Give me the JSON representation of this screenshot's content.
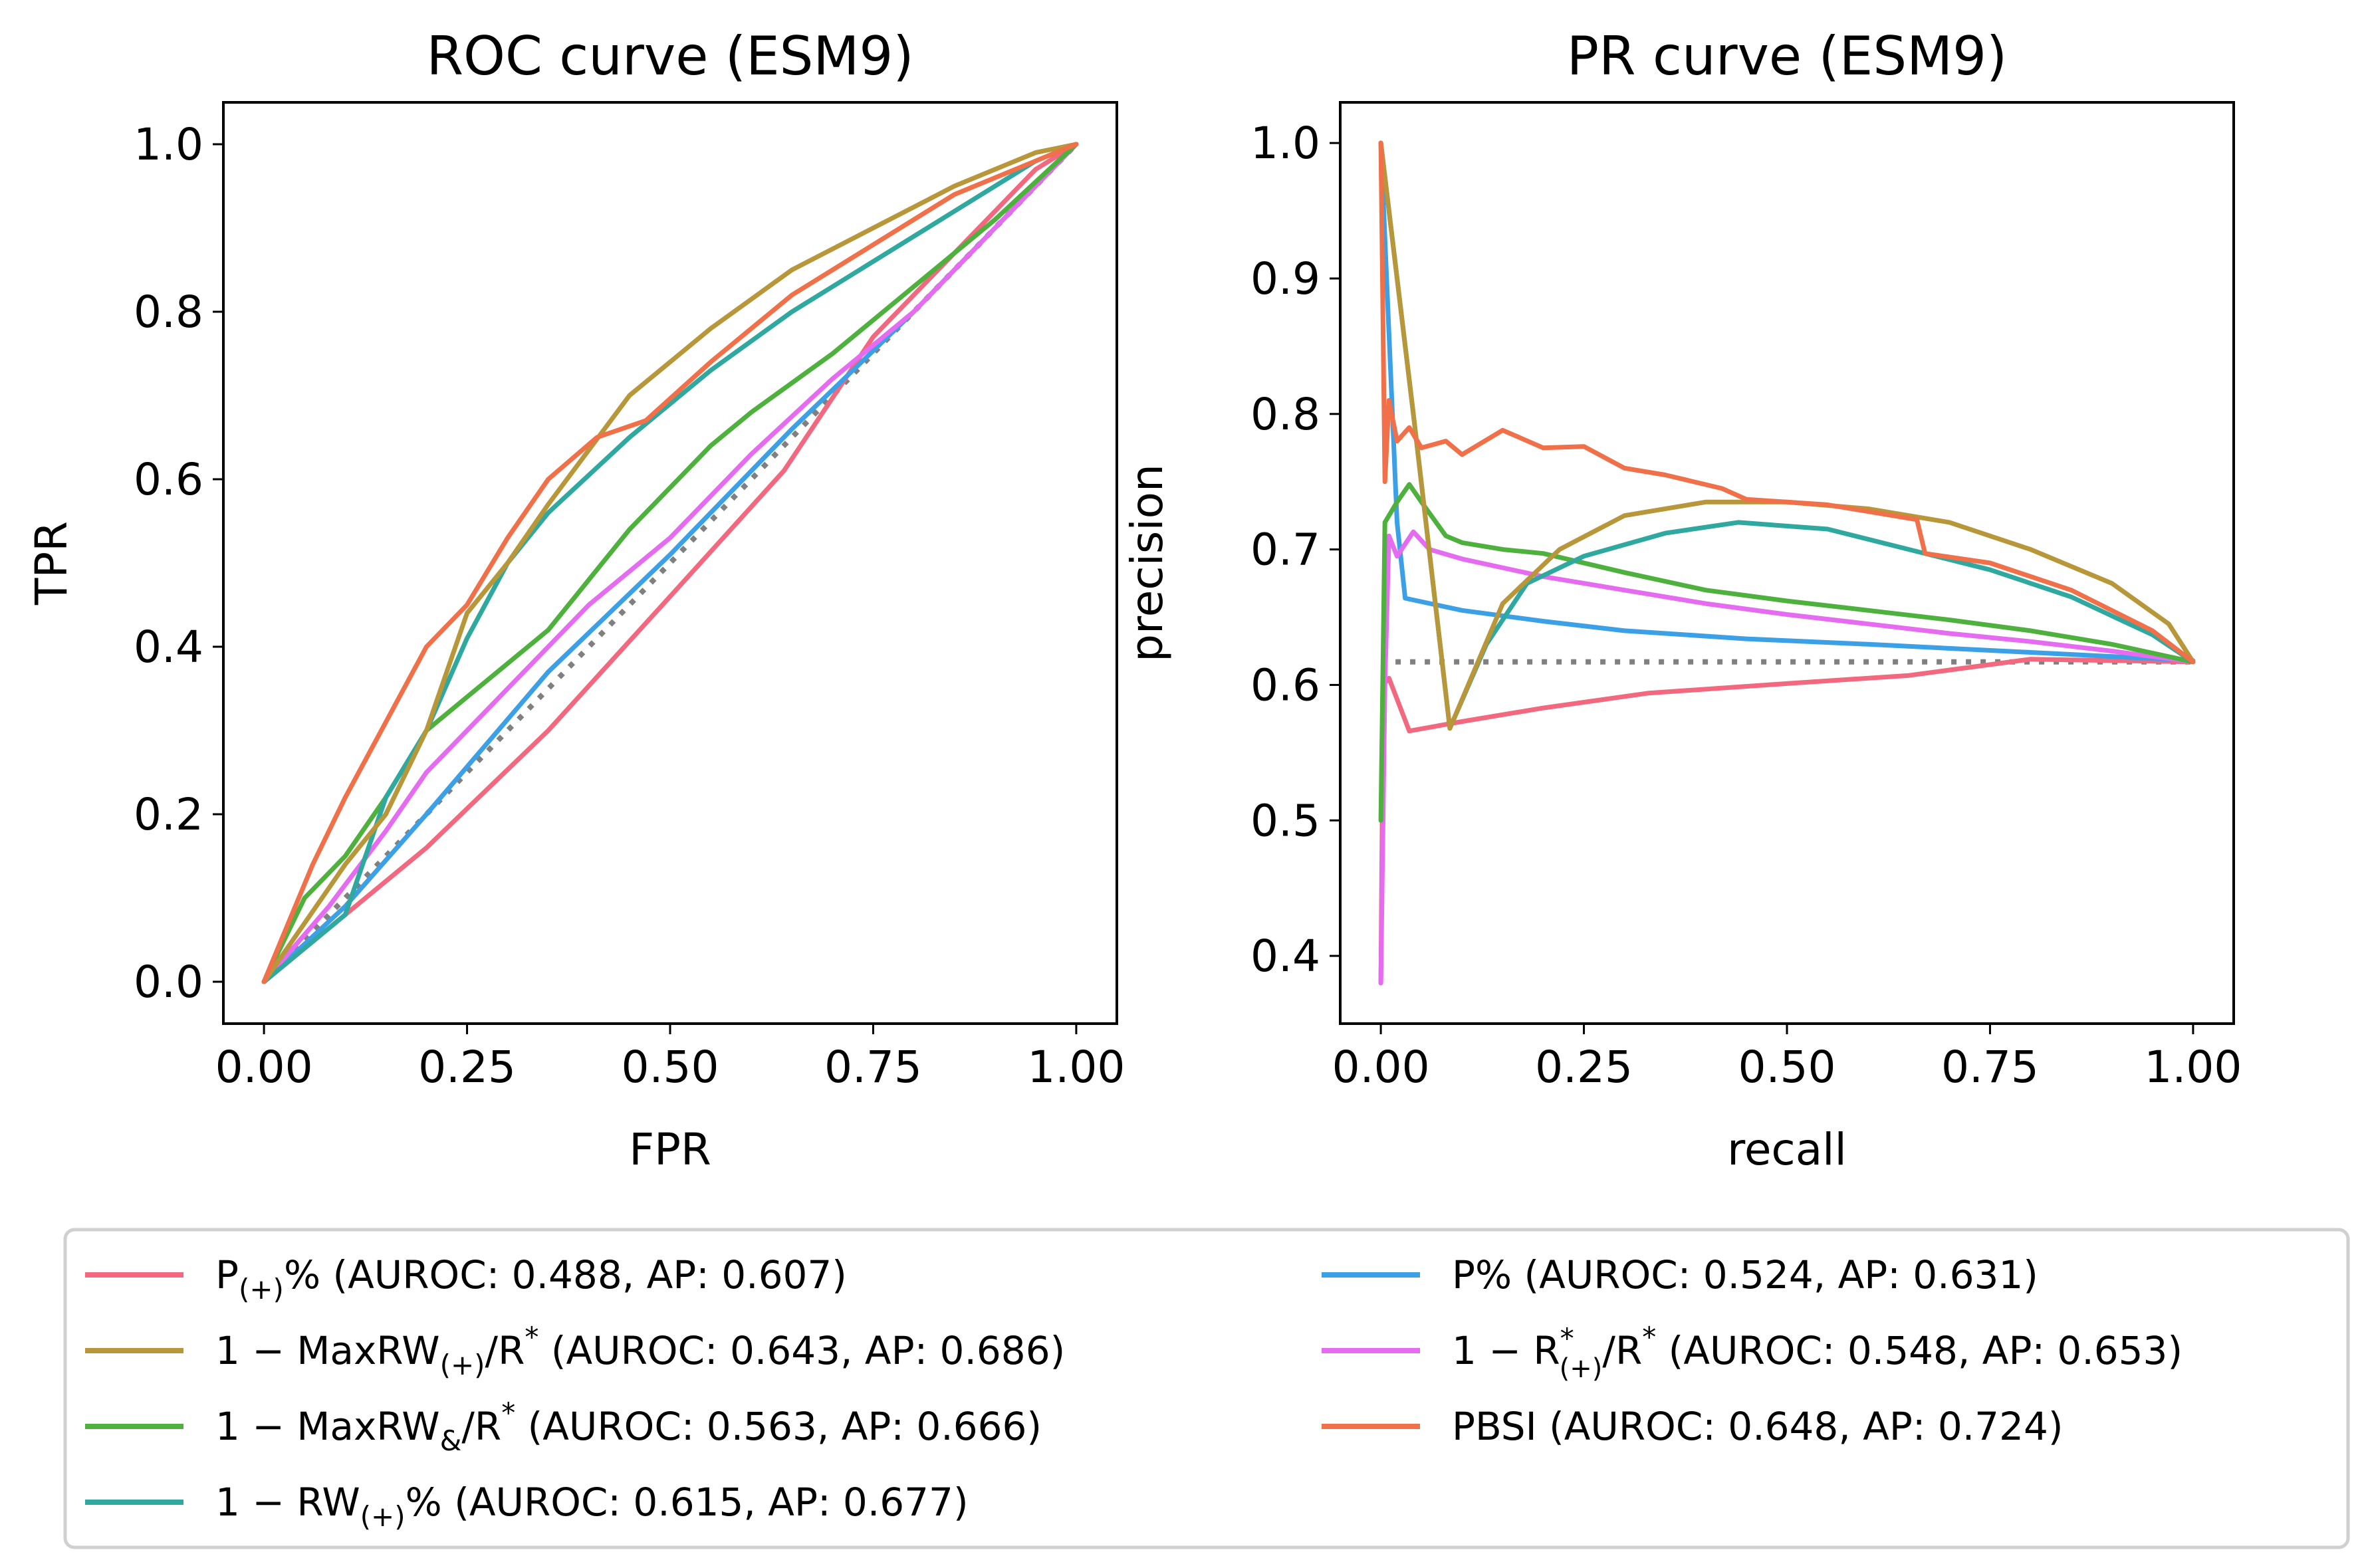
{
  "colors": {
    "p_plus": "#f2687f",
    "maxrw_plus": "#b8973a",
    "maxrw_amp": "#4fb13d",
    "rw_plus": "#2fa9a0",
    "p_pct": "#3ba0e6",
    "r_plus": "#e56bf0",
    "pbsi": "#f07049",
    "baseline": "#808080"
  },
  "chart_data": [
    {
      "id": "roc",
      "type": "line",
      "title": "ROC curve (ESM9)",
      "xlabel": "FPR",
      "ylabel": "TPR",
      "xlim": [
        -0.05,
        1.05
      ],
      "ylim": [
        -0.05,
        1.05
      ],
      "xticks": [
        "0.00",
        "0.25",
        "0.50",
        "0.75",
        "1.00"
      ],
      "yticks": [
        "0.0",
        "0.2",
        "0.4",
        "0.6",
        "0.8",
        "1.0"
      ],
      "baseline": [
        [
          0,
          0
        ],
        [
          1,
          1
        ]
      ],
      "series": [
        {
          "key": "p_plus",
          "points": [
            [
              0,
              0
            ],
            [
              0.1,
              0.08
            ],
            [
              0.2,
              0.16
            ],
            [
              0.35,
              0.3
            ],
            [
              0.5,
              0.46
            ],
            [
              0.64,
              0.61
            ],
            [
              0.75,
              0.77
            ],
            [
              0.85,
              0.87
            ],
            [
              0.95,
              0.97
            ],
            [
              1,
              1
            ]
          ]
        },
        {
          "key": "p_pct",
          "points": [
            [
              0,
              0
            ],
            [
              0.1,
              0.09
            ],
            [
              0.2,
              0.2
            ],
            [
              0.35,
              0.37
            ],
            [
              0.5,
              0.51
            ],
            [
              0.65,
              0.66
            ],
            [
              0.8,
              0.8
            ],
            [
              0.9,
              0.9
            ],
            [
              1,
              1
            ]
          ]
        },
        {
          "key": "r_plus",
          "points": [
            [
              0,
              0
            ],
            [
              0.08,
              0.09
            ],
            [
              0.15,
              0.18
            ],
            [
              0.2,
              0.25
            ],
            [
              0.3,
              0.35
            ],
            [
              0.4,
              0.45
            ],
            [
              0.5,
              0.53
            ],
            [
              0.6,
              0.63
            ],
            [
              0.7,
              0.72
            ],
            [
              0.8,
              0.8
            ],
            [
              0.9,
              0.9
            ],
            [
              1,
              1
            ]
          ]
        },
        {
          "key": "maxrw_amp",
          "points": [
            [
              0,
              0
            ],
            [
              0.05,
              0.1
            ],
            [
              0.1,
              0.15
            ],
            [
              0.15,
              0.22
            ],
            [
              0.2,
              0.3
            ],
            [
              0.25,
              0.34
            ],
            [
              0.35,
              0.42
            ],
            [
              0.45,
              0.54
            ],
            [
              0.55,
              0.64
            ],
            [
              0.6,
              0.68
            ],
            [
              0.7,
              0.75
            ],
            [
              0.8,
              0.83
            ],
            [
              0.9,
              0.91
            ],
            [
              1,
              1
            ]
          ]
        },
        {
          "key": "rw_plus",
          "points": [
            [
              0,
              0
            ],
            [
              0.1,
              0.08
            ],
            [
              0.15,
              0.22
            ],
            [
              0.2,
              0.3
            ],
            [
              0.25,
              0.41
            ],
            [
              0.3,
              0.5
            ],
            [
              0.35,
              0.56
            ],
            [
              0.45,
              0.65
            ],
            [
              0.55,
              0.73
            ],
            [
              0.65,
              0.8
            ],
            [
              0.75,
              0.86
            ],
            [
              0.85,
              0.92
            ],
            [
              0.95,
              0.98
            ],
            [
              1,
              1
            ]
          ]
        },
        {
          "key": "maxrw_plus",
          "points": [
            [
              0,
              0
            ],
            [
              0.1,
              0.14
            ],
            [
              0.15,
              0.2
            ],
            [
              0.2,
              0.3
            ],
            [
              0.25,
              0.44
            ],
            [
              0.3,
              0.5
            ],
            [
              0.35,
              0.57
            ],
            [
              0.45,
              0.7
            ],
            [
              0.55,
              0.78
            ],
            [
              0.65,
              0.85
            ],
            [
              0.75,
              0.9
            ],
            [
              0.85,
              0.95
            ],
            [
              0.95,
              0.99
            ],
            [
              1,
              1
            ]
          ]
        },
        {
          "key": "pbsi",
          "points": [
            [
              0,
              0
            ],
            [
              0.03,
              0.07
            ],
            [
              0.06,
              0.14
            ],
            [
              0.1,
              0.22
            ],
            [
              0.15,
              0.31
            ],
            [
              0.2,
              0.4
            ],
            [
              0.25,
              0.45
            ],
            [
              0.3,
              0.53
            ],
            [
              0.35,
              0.6
            ],
            [
              0.41,
              0.65
            ],
            [
              0.47,
              0.67
            ],
            [
              0.55,
              0.74
            ],
            [
              0.65,
              0.82
            ],
            [
              0.75,
              0.88
            ],
            [
              0.85,
              0.94
            ],
            [
              0.95,
              0.98
            ],
            [
              1,
              1
            ]
          ]
        }
      ]
    },
    {
      "id": "pr",
      "type": "line",
      "title": "PR curve (ESM9)",
      "xlabel": "recall",
      "ylabel": "precision",
      "xlim": [
        -0.05,
        1.05
      ],
      "ylim": [
        0.35,
        1.03
      ],
      "xticks": [
        "0.00",
        "0.25",
        "0.50",
        "0.75",
        "1.00"
      ],
      "yticks": [
        "0.4",
        "0.5",
        "0.6",
        "0.7",
        "0.8",
        "0.9",
        "1.0"
      ],
      "baseline": [
        [
          0,
          0.617
        ],
        [
          1,
          0.617
        ]
      ],
      "series": [
        {
          "key": "p_plus",
          "points": [
            [
              0,
              0.38
            ],
            [
              0.003,
              0.6
            ],
            [
              0.01,
              0.605
            ],
            [
              0.035,
              0.566
            ],
            [
              0.1,
              0.573
            ],
            [
              0.2,
              0.583
            ],
            [
              0.33,
              0.594
            ],
            [
              0.5,
              0.601
            ],
            [
              0.65,
              0.607
            ],
            [
              0.8,
              0.619
            ],
            [
              1,
              0.617
            ]
          ]
        },
        {
          "key": "p_pct",
          "points": [
            [
              0,
              1.0
            ],
            [
              0.02,
              0.72
            ],
            [
              0.03,
              0.664
            ],
            [
              0.1,
              0.655
            ],
            [
              0.2,
              0.647
            ],
            [
              0.3,
              0.64
            ],
            [
              0.45,
              0.634
            ],
            [
              0.6,
              0.63
            ],
            [
              0.8,
              0.624
            ],
            [
              1,
              0.618
            ]
          ]
        },
        {
          "key": "r_plus",
          "points": [
            [
              0,
              0.38
            ],
            [
              0.005,
              0.6
            ],
            [
              0.01,
              0.71
            ],
            [
              0.02,
              0.695
            ],
            [
              0.04,
              0.713
            ],
            [
              0.06,
              0.7
            ],
            [
              0.1,
              0.693
            ],
            [
              0.2,
              0.68
            ],
            [
              0.3,
              0.67
            ],
            [
              0.4,
              0.66
            ],
            [
              0.5,
              0.652
            ],
            [
              0.6,
              0.645
            ],
            [
              0.7,
              0.638
            ],
            [
              0.8,
              0.632
            ],
            [
              0.9,
              0.625
            ],
            [
              1,
              0.617
            ]
          ]
        },
        {
          "key": "maxrw_amp",
          "points": [
            [
              0,
              0.5
            ],
            [
              0.005,
              0.72
            ],
            [
              0.02,
              0.735
            ],
            [
              0.035,
              0.748
            ],
            [
              0.05,
              0.735
            ],
            [
              0.08,
              0.71
            ],
            [
              0.1,
              0.705
            ],
            [
              0.15,
              0.7
            ],
            [
              0.2,
              0.697
            ],
            [
              0.3,
              0.683
            ],
            [
              0.4,
              0.67
            ],
            [
              0.5,
              0.662
            ],
            [
              0.6,
              0.655
            ],
            [
              0.7,
              0.648
            ],
            [
              0.8,
              0.64
            ],
            [
              0.9,
              0.63
            ],
            [
              1,
              0.617
            ]
          ]
        },
        {
          "key": "rw_plus",
          "points": [
            [
              0,
              1.0
            ],
            [
              0.04,
              0.8
            ],
            [
              0.085,
              0.568
            ],
            [
              0.13,
              0.63
            ],
            [
              0.18,
              0.675
            ],
            [
              0.25,
              0.695
            ],
            [
              0.35,
              0.712
            ],
            [
              0.44,
              0.72
            ],
            [
              0.55,
              0.715
            ],
            [
              0.65,
              0.7
            ],
            [
              0.75,
              0.685
            ],
            [
              0.85,
              0.665
            ],
            [
              0.95,
              0.637
            ],
            [
              1,
              0.617
            ]
          ]
        },
        {
          "key": "maxrw_plus",
          "points": [
            [
              0,
              1.0
            ],
            [
              0.04,
              0.8
            ],
            [
              0.085,
              0.568
            ],
            [
              0.15,
              0.66
            ],
            [
              0.22,
              0.7
            ],
            [
              0.3,
              0.725
            ],
            [
              0.4,
              0.735
            ],
            [
              0.5,
              0.735
            ],
            [
              0.6,
              0.73
            ],
            [
              0.7,
              0.72
            ],
            [
              0.8,
              0.7
            ],
            [
              0.9,
              0.675
            ],
            [
              0.97,
              0.645
            ],
            [
              1,
              0.617
            ]
          ]
        },
        {
          "key": "pbsi",
          "points": [
            [
              0,
              1.0
            ],
            [
              0.005,
              0.75
            ],
            [
              0.01,
              0.81
            ],
            [
              0.02,
              0.78
            ],
            [
              0.035,
              0.79
            ],
            [
              0.05,
              0.775
            ],
            [
              0.08,
              0.78
            ],
            [
              0.1,
              0.77
            ],
            [
              0.15,
              0.788
            ],
            [
              0.2,
              0.775
            ],
            [
              0.25,
              0.776
            ],
            [
              0.3,
              0.76
            ],
            [
              0.35,
              0.755
            ],
            [
              0.42,
              0.745
            ],
            [
              0.45,
              0.737
            ],
            [
              0.55,
              0.733
            ],
            [
              0.66,
              0.722
            ],
            [
              0.67,
              0.697
            ],
            [
              0.75,
              0.69
            ],
            [
              0.85,
              0.67
            ],
            [
              0.95,
              0.64
            ],
            [
              1,
              0.617
            ]
          ]
        }
      ]
    }
  ],
  "legend": {
    "placement": "bottom",
    "columns": [
      [
        {
          "key": "p_plus",
          "base": "P",
          "sub": "(+)",
          "tail": "% (AUROC: 0.488, AP: 0.607)"
        },
        {
          "key": "maxrw_plus",
          "base": "1 − MaxRW",
          "sub": "(+)",
          "mid": "/R",
          "sup": "*",
          "tail": " (AUROC: 0.643, AP: 0.686)"
        },
        {
          "key": "maxrw_amp",
          "base": "1 − MaxRW",
          "sub": "&",
          "mid": "/R",
          "sup": "*",
          "tail": " (AUROC: 0.563, AP: 0.666)"
        },
        {
          "key": "rw_plus",
          "base": "1 − RW",
          "sub": "(+)",
          "tail": "% (AUROC: 0.615, AP: 0.677)"
        }
      ],
      [
        {
          "key": "p_pct",
          "base": "P% (AUROC: 0.524, AP: 0.631)"
        },
        {
          "key": "r_plus",
          "base": "1 − R",
          "sub": "(+)",
          "subsup": "*",
          "mid": "/R",
          "sup": "*",
          "tail": " (AUROC: 0.548, AP: 0.653)"
        },
        {
          "key": "pbsi",
          "base": "PBSI (AUROC: 0.648, AP: 0.724)"
        }
      ]
    ]
  }
}
